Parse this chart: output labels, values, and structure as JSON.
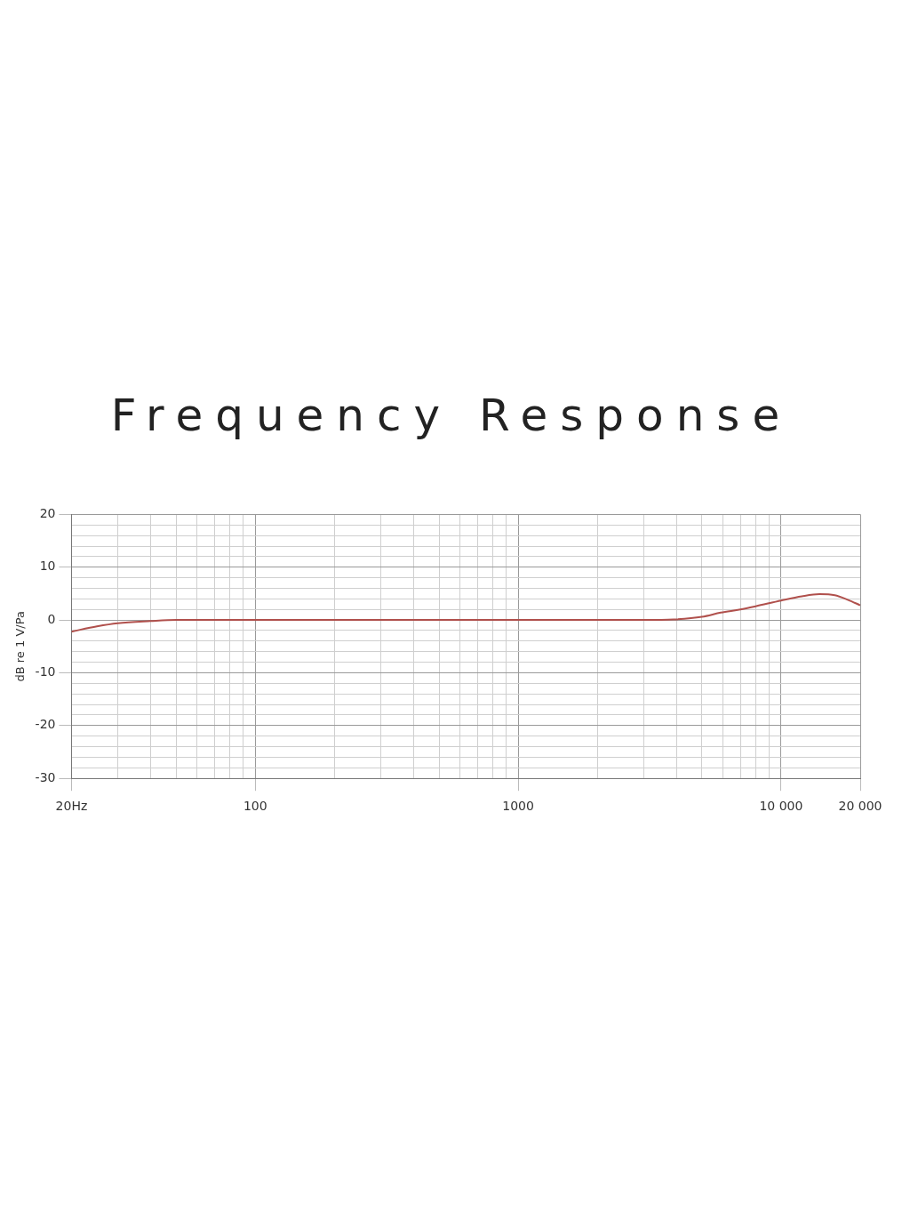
{
  "chart_data": {
    "type": "line",
    "title": "Frequency Response",
    "ylabel": "dB re 1 V/Pa",
    "x": [
      20,
      25,
      30,
      40,
      50,
      70,
      100,
      300,
      1000,
      3000,
      3900,
      5000,
      5900,
      7000,
      8000,
      10000,
      12000,
      14000,
      16000,
      18000,
      20000
    ],
    "series": [
      {
        "color": "#b0504c",
        "values": [
          -2.2,
          -1.2,
          -0.6,
          -0.2,
          0,
          0,
          0,
          0,
          0,
          0,
          0.1,
          0.6,
          1.4,
          2,
          2.6,
          3.7,
          4.5,
          4.9,
          4.7,
          3.8,
          2.8
        ]
      }
    ],
    "xlim": [
      20,
      20000
    ],
    "ylim": [
      -30,
      20
    ],
    "log": "x",
    "grid": true,
    "legend": false,
    "marker": "none",
    "line_style": "solid",
    "xticks": [
      {
        "value": 20,
        "label": "20Hz"
      },
      {
        "value": 30,
        "label": null
      },
      {
        "value": 40,
        "label": null
      },
      {
        "value": 50,
        "label": null
      },
      {
        "value": 60,
        "label": null
      },
      {
        "value": 70,
        "label": null
      },
      {
        "value": 80,
        "label": null
      },
      {
        "value": 90,
        "label": null
      },
      100,
      {
        "value": 200,
        "label": null
      },
      {
        "value": 300,
        "label": null
      },
      {
        "value": 400,
        "label": null
      },
      {
        "value": 500,
        "label": null
      },
      {
        "value": 600,
        "label": null
      },
      {
        "value": 700,
        "label": null
      },
      {
        "value": 800,
        "label": null
      },
      {
        "value": 900,
        "label": null
      },
      1000,
      {
        "value": 2000,
        "label": null
      },
      {
        "value": 3000,
        "label": null
      },
      {
        "value": 4000,
        "label": null
      },
      {
        "value": 5000,
        "label": null
      },
      {
        "value": 6000,
        "label": null
      },
      {
        "value": 7000,
        "label": null
      },
      {
        "value": 8000,
        "label": null
      },
      {
        "value": 9000,
        "label": null
      },
      {
        "value": 10000,
        "label": "10 000"
      },
      {
        "value": 20000,
        "label": "20 000"
      }
    ],
    "yticks": [
      -30,
      {
        "value": -28,
        "label": null
      },
      {
        "value": -26,
        "label": null
      },
      {
        "value": -24,
        "label": null
      },
      {
        "value": -22,
        "label": null
      },
      -20,
      {
        "value": -18,
        "label": null
      },
      {
        "value": -16,
        "label": null
      },
      {
        "value": -14,
        "label": null
      },
      {
        "value": -12,
        "label": null
      },
      -10,
      {
        "value": -8,
        "label": null
      },
      {
        "value": -6,
        "label": null
      },
      {
        "value": -4,
        "label": null
      },
      {
        "value": -2,
        "label": null
      },
      0,
      {
        "value": 2,
        "label": null
      },
      {
        "value": 4,
        "label": null
      },
      {
        "value": 6,
        "label": null
      },
      {
        "value": 8,
        "label": null
      },
      10,
      {
        "value": 12,
        "label": null
      },
      {
        "value": 14,
        "label": null
      },
      {
        "value": 16,
        "label": null
      },
      {
        "value": 18,
        "label": null
      },
      20
    ]
  }
}
